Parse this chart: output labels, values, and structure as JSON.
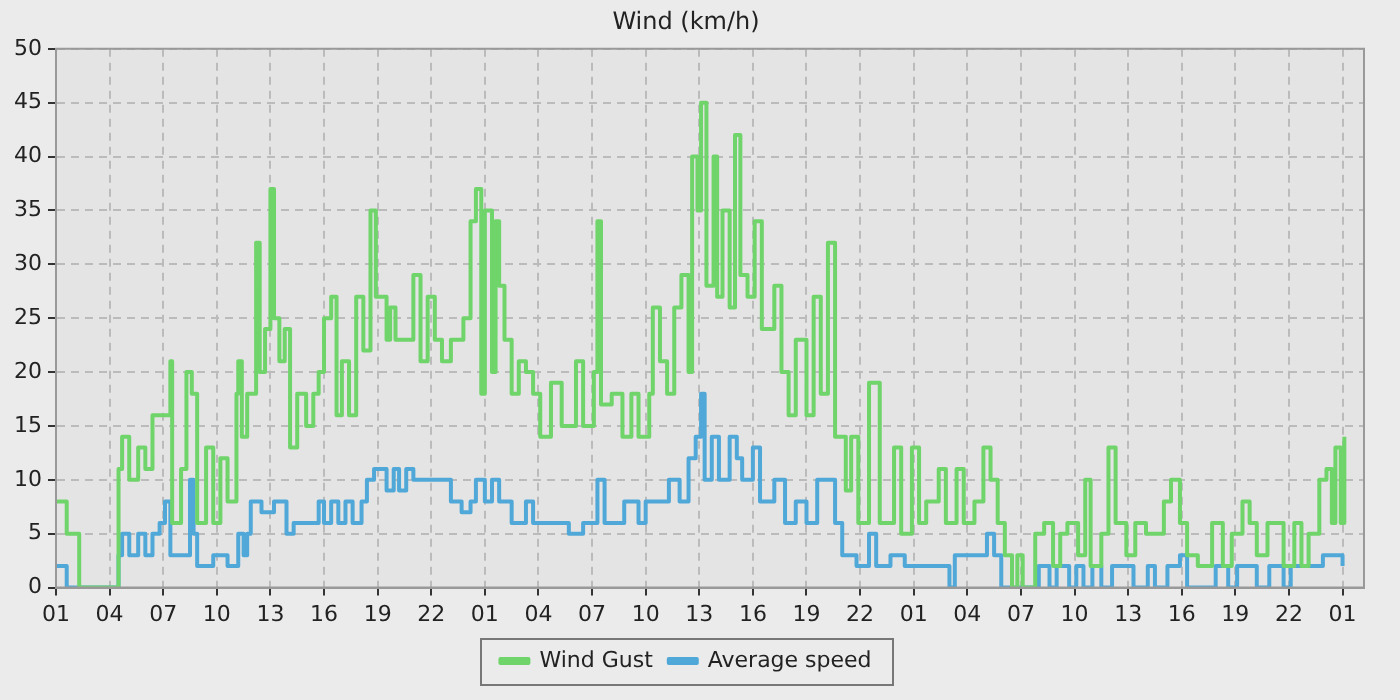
{
  "chart_data": {
    "type": "step",
    "title": "Wind (km/h)",
    "xlim": [
      "--01-01T01:00",
      "--01-04T02:12"
    ],
    "ylim": [
      0,
      50
    ],
    "xticks": [
      {
        "value": "--01-01T01:00",
        "label": "01"
      },
      {
        "value": "--01-01T04:00",
        "label": "04"
      },
      {
        "value": "--01-01T07:00",
        "label": "07"
      },
      {
        "value": "--01-01T10:00",
        "label": "10"
      },
      {
        "value": "--01-01T13:00",
        "label": "13"
      },
      {
        "value": "--01-01T16:00",
        "label": "16"
      },
      {
        "value": "--01-01T19:00",
        "label": "19"
      },
      {
        "value": "--01-01T22:00",
        "label": "22"
      },
      {
        "value": "--01-02T01:00",
        "label": "01"
      },
      {
        "value": "--01-02T04:00",
        "label": "04"
      },
      {
        "value": "--01-02T07:00",
        "label": "07"
      },
      {
        "value": "--01-02T10:00",
        "label": "10"
      },
      {
        "value": "--01-02T13:00",
        "label": "13"
      },
      {
        "value": "--01-02T16:00",
        "label": "16"
      },
      {
        "value": "--01-02T19:00",
        "label": "19"
      },
      {
        "value": "--01-02T22:00",
        "label": "22"
      },
      {
        "value": "--01-03T01:00",
        "label": "01"
      },
      {
        "value": "--01-03T04:00",
        "label": "04"
      },
      {
        "value": "--01-03T07:00",
        "label": "07"
      },
      {
        "value": "--01-03T10:00",
        "label": "10"
      },
      {
        "value": "--01-03T13:00",
        "label": "13"
      },
      {
        "value": "--01-03T16:00",
        "label": "16"
      },
      {
        "value": "--01-03T19:00",
        "label": "19"
      },
      {
        "value": "--01-03T22:00",
        "label": "22"
      },
      {
        "value": "--01-04T01:00",
        "label": "01"
      }
    ],
    "yticks": [
      0,
      5,
      10,
      15,
      20,
      25,
      30,
      35,
      40,
      45,
      50
    ],
    "grid": true,
    "legend": "bottom",
    "line_style": "solid",
    "marker": "none",
    "series": [
      {
        "name": "Wind Gust",
        "color": "#6fd46a",
        "x": [
          "--01-01T01:00",
          "--01-01T01:36",
          "--01-01T02:18",
          "--01-01T04:06",
          "--01-01T04:30",
          "--01-01T04:42",
          "--01-01T05:06",
          "--01-01T05:36",
          "--01-01T06:00",
          "--01-01T06:24",
          "--01-01T07:00",
          "--01-01T07:24",
          "--01-01T07:30",
          "--01-01T08:00",
          "--01-01T08:18",
          "--01-01T08:36",
          "--01-01T08:54",
          "--01-01T09:24",
          "--01-01T09:48",
          "--01-01T10:12",
          "--01-01T10:36",
          "--01-01T11:06",
          "--01-01T11:12",
          "--01-01T11:24",
          "--01-01T11:42",
          "--01-01T12:12",
          "--01-01T12:24",
          "--01-01T12:42",
          "--01-01T13:00",
          "--01-01T13:12",
          "--01-01T13:30",
          "--01-01T13:48",
          "--01-01T14:06",
          "--01-01T14:30",
          "--01-01T15:00",
          "--01-01T15:24",
          "--01-01T15:42",
          "--01-01T16:00",
          "--01-01T16:24",
          "--01-01T16:42",
          "--01-01T17:00",
          "--01-01T17:24",
          "--01-01T17:48",
          "--01-01T18:12",
          "--01-01T18:36",
          "--01-01T18:54",
          "--01-01T19:18",
          "--01-01T19:30",
          "--01-01T19:42",
          "--01-01T20:00",
          "--01-01T20:30",
          "--01-01T21:00",
          "--01-01T21:24",
          "--01-01T21:48",
          "--01-01T22:12",
          "--01-01T22:36",
          "--01-01T23:06",
          "--01-01T23:48",
          "--01-02T00:12",
          "--01-02T00:30",
          "--01-02T00:48",
          "--01-02T01:00",
          "--01-02T01:24",
          "--01-02T01:36",
          "--01-02T01:48",
          "--01-02T02:06",
          "--01-02T02:30",
          "--01-02T02:54",
          "--01-02T03:18",
          "--01-02T03:42",
          "--01-02T04:06",
          "--01-02T04:42",
          "--01-02T05:18",
          "--01-02T06:06",
          "--01-02T06:30",
          "--01-02T07:06",
          "--01-02T07:18",
          "--01-02T07:30",
          "--01-02T08:06",
          "--01-02T08:42",
          "--01-02T09:12",
          "--01-02T09:36",
          "--01-02T10:12",
          "--01-02T10:24",
          "--01-02T10:48",
          "--01-02T11:12",
          "--01-02T11:36",
          "--01-02T12:00",
          "--01-02T12:24",
          "--01-02T12:36",
          "--01-02T12:54",
          "--01-02T13:06",
          "--01-02T13:24",
          "--01-02T13:48",
          "--01-02T14:00",
          "--01-02T14:18",
          "--01-02T14:42",
          "--01-02T15:00",
          "--01-02T15:18",
          "--01-02T15:42",
          "--01-02T16:06",
          "--01-02T16:30",
          "--01-02T16:54",
          "--01-02T17:12",
          "--01-02T17:36",
          "--01-02T18:00",
          "--01-02T18:24",
          "--01-02T19:00",
          "--01-02T19:24",
          "--01-02T19:48",
          "--01-02T20:12",
          "--01-02T20:36",
          "--01-02T21:12",
          "--01-02T21:30",
          "--01-02T21:54",
          "--01-02T22:30",
          "--01-02T23:06",
          "--01-02T23:54",
          "--01-03T00:18",
          "--01-03T00:54",
          "--01-03T01:18",
          "--01-03T01:42",
          "--01-03T02:24",
          "--01-03T02:48",
          "--01-03T03:24",
          "--01-03T03:48",
          "--01-03T04:24",
          "--01-03T04:54",
          "--01-03T05:18",
          "--01-03T05:42",
          "--01-03T06:06",
          "--01-03T06:30",
          "--01-03T06:48",
          "--01-03T07:06",
          "--01-03T07:48",
          "--01-03T08:18",
          "--01-03T08:48",
          "--01-03T09:12",
          "--01-03T09:36",
          "--01-03T10:12",
          "--01-03T10:36",
          "--01-03T10:54",
          "--01-03T11:30",
          "--01-03T11:54",
          "--01-03T12:18",
          "--01-03T12:54",
          "--01-03T13:24",
          "--01-03T14:00",
          "--01-03T15:00",
          "--01-03T15:24",
          "--01-03T15:54",
          "--01-03T16:18",
          "--01-03T16:54",
          "--01-03T17:42",
          "--01-03T18:18",
          "--01-03T18:48",
          "--01-03T19:24",
          "--01-03T19:48",
          "--01-03T20:12",
          "--01-03T20:48",
          "--01-03T21:24",
          "--01-03T21:42",
          "--01-03T22:18",
          "--01-03T22:42",
          "--01-03T23:06",
          "--01-03T23:42",
          "--01-04T00:06",
          "--01-04T00:24",
          "--01-04T00:36",
          "--01-04T00:54",
          "--01-04T01:06"
        ],
        "values": [
          8,
          5,
          0,
          0,
          11,
          14,
          10,
          13,
          11,
          16,
          16,
          21,
          6,
          11,
          20,
          18,
          6,
          13,
          6,
          12,
          8,
          18,
          21,
          14,
          18,
          32,
          20,
          24,
          37,
          25,
          21,
          24,
          13,
          18,
          15,
          18,
          20,
          25,
          27,
          16,
          21,
          16,
          27,
          22,
          35,
          27,
          27,
          23,
          26,
          23,
          23,
          29,
          21,
          27,
          23,
          21,
          23,
          25,
          34,
          37,
          18,
          35,
          20,
          34,
          28,
          23,
          18,
          21,
          20,
          18,
          14,
          19,
          15,
          21,
          15,
          20,
          34,
          17,
          18,
          14,
          18,
          14,
          18,
          26,
          21,
          18,
          26,
          29,
          20,
          40,
          35,
          45,
          28,
          40,
          27,
          35,
          26,
          42,
          29,
          27,
          34,
          24,
          24,
          28,
          20,
          16,
          23,
          16,
          27,
          18,
          32,
          14,
          9,
          14,
          6,
          19,
          6,
          13,
          5,
          13,
          6,
          8,
          11,
          6,
          11,
          6,
          8,
          13,
          10,
          6,
          3,
          0,
          3,
          0,
          5,
          6,
          2,
          5,
          6,
          3,
          10,
          2,
          5,
          13,
          6,
          3,
          6,
          5,
          8,
          10,
          6,
          3,
          2,
          6,
          2,
          5,
          8,
          6,
          3,
          6,
          6,
          2,
          6,
          2,
          5,
          10,
          11,
          6,
          13,
          6,
          14
        ]
      },
      {
        "name": "Average speed",
        "color": "#4fa8d8",
        "x": [
          "--01-01T01:00",
          "--01-01T01:36",
          "--01-01T04:18",
          "--01-01T04:30",
          "--01-01T04:42",
          "--01-01T05:06",
          "--01-01T05:36",
          "--01-01T06:00",
          "--01-01T06:24",
          "--01-01T06:48",
          "--01-01T07:06",
          "--01-01T07:24",
          "--01-01T08:00",
          "--01-01T08:30",
          "--01-01T08:42",
          "--01-01T08:54",
          "--01-01T09:24",
          "--01-01T09:48",
          "--01-01T10:12",
          "--01-01T10:36",
          "--01-01T11:12",
          "--01-01T11:30",
          "--01-01T11:42",
          "--01-01T11:54",
          "--01-01T12:30",
          "--01-01T13:12",
          "--01-01T13:54",
          "--01-01T14:18",
          "--01-01T14:54",
          "--01-01T15:42",
          "--01-01T16:00",
          "--01-01T16:24",
          "--01-01T16:48",
          "--01-01T17:12",
          "--01-01T17:36",
          "--01-01T18:06",
          "--01-01T18:24",
          "--01-01T18:48",
          "--01-01T19:18",
          "--01-01T19:30",
          "--01-01T19:54",
          "--01-01T20:12",
          "--01-01T20:36",
          "--01-01T21:00",
          "--01-01T21:54",
          "--01-01T23:06",
          "--01-01T23:42",
          "--01-02T00:12",
          "--01-02T00:30",
          "--01-02T01:00",
          "--01-02T01:24",
          "--01-02T01:48",
          "--01-02T02:30",
          "--01-02T03:18",
          "--01-02T03:42",
          "--01-02T04:54",
          "--01-02T05:42",
          "--01-02T06:30",
          "--01-02T07:18",
          "--01-02T07:42",
          "--01-02T08:48",
          "--01-02T09:36",
          "--01-02T10:00",
          "--01-02T11:18",
          "--01-02T11:54",
          "--01-02T12:24",
          "--01-02T12:48",
          "--01-02T13:06",
          "--01-02T13:18",
          "--01-02T13:42",
          "--01-02T14:06",
          "--01-02T14:42",
          "--01-02T15:06",
          "--01-02T15:24",
          "--01-02T16:00",
          "--01-02T16:24",
          "--01-02T17:12",
          "--01-02T17:48",
          "--01-02T18:24",
          "--01-02T19:00",
          "--01-02T19:36",
          "--01-02T20:12",
          "--01-02T20:36",
          "--01-02T21:00",
          "--01-02T21:48",
          "--01-02T22:30",
          "--01-02T22:54",
          "--01-02T23:42",
          "--01-03T00:30",
          "--01-03T03:00",
          "--01-03T03:18",
          "--01-03T05:06",
          "--01-03T05:30",
          "--01-03T05:54",
          "--01-03T08:00",
          "--01-03T08:36",
          "--01-03T09:00",
          "--01-03T09:42",
          "--01-03T10:06",
          "--01-03T10:30",
          "--01-03T11:00",
          "--01-03T11:30",
          "--01-03T12:06",
          "--01-03T12:54",
          "--01-03T13:18",
          "--01-03T14:06",
          "--01-03T14:30",
          "--01-03T15:12",
          "--01-03T15:54",
          "--01-03T16:18",
          "--01-03T17:30",
          "--01-03T17:54",
          "--01-03T18:36",
          "--01-03T19:06",
          "--01-03T19:42",
          "--01-03T20:12",
          "--01-03T20:54",
          "--01-03T21:42",
          "--01-03T22:06",
          "--01-03T22:54",
          "--01-03T23:54",
          "--01-04T01:00"
        ],
        "values": [
          2,
          0,
          0,
          3,
          5,
          3,
          5,
          3,
          5,
          6,
          8,
          3,
          3,
          10,
          5,
          2,
          2,
          3,
          3,
          2,
          5,
          3,
          5,
          8,
          7,
          8,
          5,
          6,
          6,
          8,
          6,
          8,
          6,
          8,
          6,
          8,
          10,
          11,
          11,
          9,
          11,
          9,
          11,
          10,
          10,
          8,
          7,
          8,
          10,
          8,
          10,
          8,
          6,
          8,
          6,
          6,
          5,
          6,
          10,
          6,
          8,
          6,
          8,
          10,
          8,
          12,
          14,
          18,
          10,
          14,
          10,
          14,
          12,
          10,
          13,
          8,
          10,
          6,
          8,
          6,
          10,
          10,
          6,
          3,
          2,
          5,
          2,
          3,
          2,
          0,
          3,
          5,
          3,
          0,
          2,
          0,
          2,
          0,
          2,
          0,
          2,
          0,
          2,
          2,
          0,
          2,
          0,
          2,
          3,
          0,
          0,
          2,
          0,
          2,
          2,
          0,
          2,
          0,
          2,
          2,
          3,
          2
        ]
      }
    ]
  }
}
